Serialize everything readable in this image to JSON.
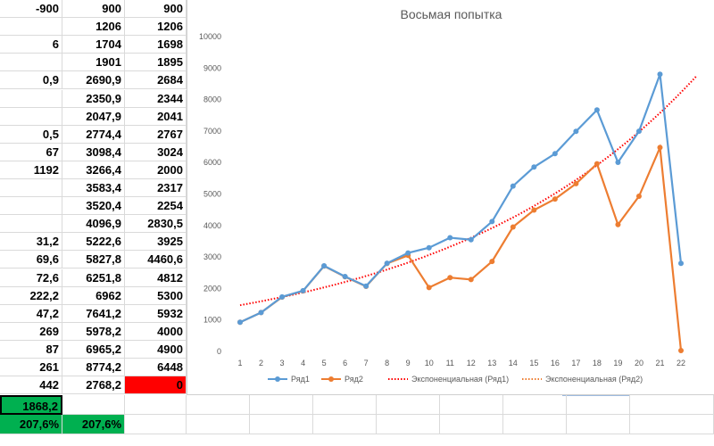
{
  "spreadsheet": {
    "rows": [
      [
        "-900",
        "900",
        "900"
      ],
      [
        "",
        "1206",
        "1206"
      ],
      [
        "6",
        "1704",
        "1698"
      ],
      [
        "",
        "1901",
        "1895"
      ],
      [
        "0,9",
        "2690,9",
        "2684"
      ],
      [
        "",
        "2350,9",
        "2344"
      ],
      [
        "",
        "2047,9",
        "2041"
      ],
      [
        "0,5",
        "2774,4",
        "2767"
      ],
      [
        "67",
        "3098,4",
        "3024"
      ],
      [
        "1192",
        "3266,4",
        "2000"
      ],
      [
        "",
        "3583,4",
        "2317"
      ],
      [
        "",
        "3520,4",
        "2254"
      ],
      [
        "",
        "4096,9",
        "2830,5"
      ],
      [
        "31,2",
        "5222,6",
        "3925"
      ],
      [
        "69,6",
        "5827,8",
        "4460,6"
      ],
      [
        "72,6",
        "6251,8",
        "4812"
      ],
      [
        "222,2",
        "6962",
        "5300"
      ],
      [
        "47,2",
        "7641,2",
        "5932"
      ],
      [
        "269",
        "5978,2",
        "4000"
      ],
      [
        "87",
        "6965,2",
        "4900"
      ],
      [
        "261",
        "8774,2",
        "6448"
      ],
      [
        "442",
        "2768,2",
        "0"
      ]
    ],
    "summary_value": "1868,2",
    "percent_left": "207,6%",
    "percent_right": "207,6%",
    "colors": {
      "red": "#ff0000",
      "green": "#00b050"
    }
  },
  "chart_data": {
    "type": "line",
    "title": "Восьмая попытка",
    "x": [
      1,
      2,
      3,
      4,
      5,
      6,
      7,
      8,
      9,
      10,
      11,
      12,
      13,
      14,
      15,
      16,
      17,
      18,
      19,
      20,
      21,
      22
    ],
    "ylim": [
      0,
      10000
    ],
    "yticks": [
      0,
      1000,
      2000,
      3000,
      4000,
      5000,
      6000,
      7000,
      8000,
      9000,
      10000
    ],
    "series": [
      {
        "name": "Ряд1",
        "color": "#5b9bd5",
        "values": [
          900,
          1206,
          1704,
          1901,
          2690.9,
          2350.9,
          2047.9,
          2774.4,
          3098.4,
          3266.4,
          3583.4,
          3520.4,
          4096.9,
          5222.6,
          5827.8,
          6251.8,
          6962,
          7641.2,
          5978.2,
          6965.2,
          8774.2,
          2768.2
        ]
      },
      {
        "name": "Ряд2",
        "color": "#ed7d31",
        "values": [
          900,
          1206,
          1698,
          1895,
          2684,
          2344,
          2041,
          2767,
          3024,
          2000,
          2317,
          2254,
          2830.5,
          3925,
          4460.6,
          4812,
          5300,
          5932,
          4000,
          4900,
          6448,
          0
        ]
      }
    ],
    "trendlines": [
      {
        "name": "Экспоненциальная (Ряд1)",
        "color": "#ff0000",
        "style": "dotted",
        "start": 1440,
        "end": 8200
      },
      {
        "name": "Экспоненциальная (Ряд2)",
        "color": "#ed7d31",
        "style": "dotted"
      }
    ],
    "legend": "bottom",
    "grid": false
  }
}
